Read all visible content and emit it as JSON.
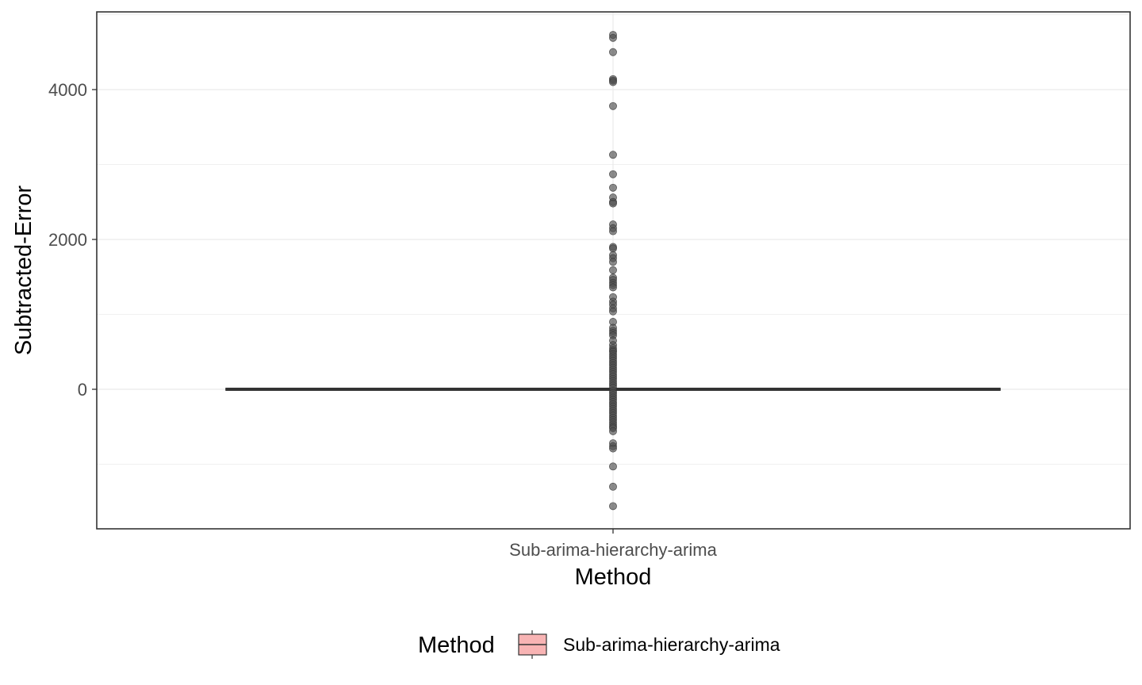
{
  "chart_data": {
    "type": "box",
    "category": "Sub-arima-hierarchy-arima",
    "xlabel": "Method",
    "ylabel": "Subtracted-Error",
    "ylim": [
      -1850,
      5150
    ],
    "yticks": [
      0,
      2000,
      4000
    ],
    "grid": true,
    "legend": {
      "title": "Method",
      "position": "bottom",
      "entries": [
        {
          "label": "Sub-arima-hierarchy-arima",
          "fill": "#f8b4b4"
        }
      ]
    },
    "box": {
      "min": -2,
      "q1": -1,
      "median": 0,
      "q3": 1,
      "max": 2
    },
    "outliers": [
      4730,
      4690,
      4500,
      4140,
      4120,
      4100,
      3780,
      3130,
      2870,
      2690,
      2560,
      2500,
      2480,
      2200,
      2150,
      2110,
      1900,
      1880,
      1790,
      1750,
      1700,
      1590,
      1490,
      1460,
      1420,
      1390,
      1360,
      1230,
      1170,
      1130,
      1080,
      1040,
      900,
      820,
      780,
      750,
      720,
      650,
      590,
      550,
      520,
      500,
      470,
      440,
      410,
      380,
      350,
      320,
      290,
      260,
      230,
      200,
      170,
      140,
      110,
      80,
      50,
      20,
      -20,
      -50,
      -80,
      -110,
      -140,
      -170,
      -200,
      -230,
      -260,
      -290,
      -320,
      -350,
      -380,
      -410,
      -440,
      -470,
      -500,
      -520,
      -560,
      -720,
      -760,
      -790,
      -1030,
      -1300,
      -1560
    ],
    "colors": {
      "box_fill": "#f8b4b4",
      "box_line": "#333333",
      "point": "#4d4d4d",
      "grid": "#ebebeb",
      "panel_border": "#333333"
    }
  }
}
